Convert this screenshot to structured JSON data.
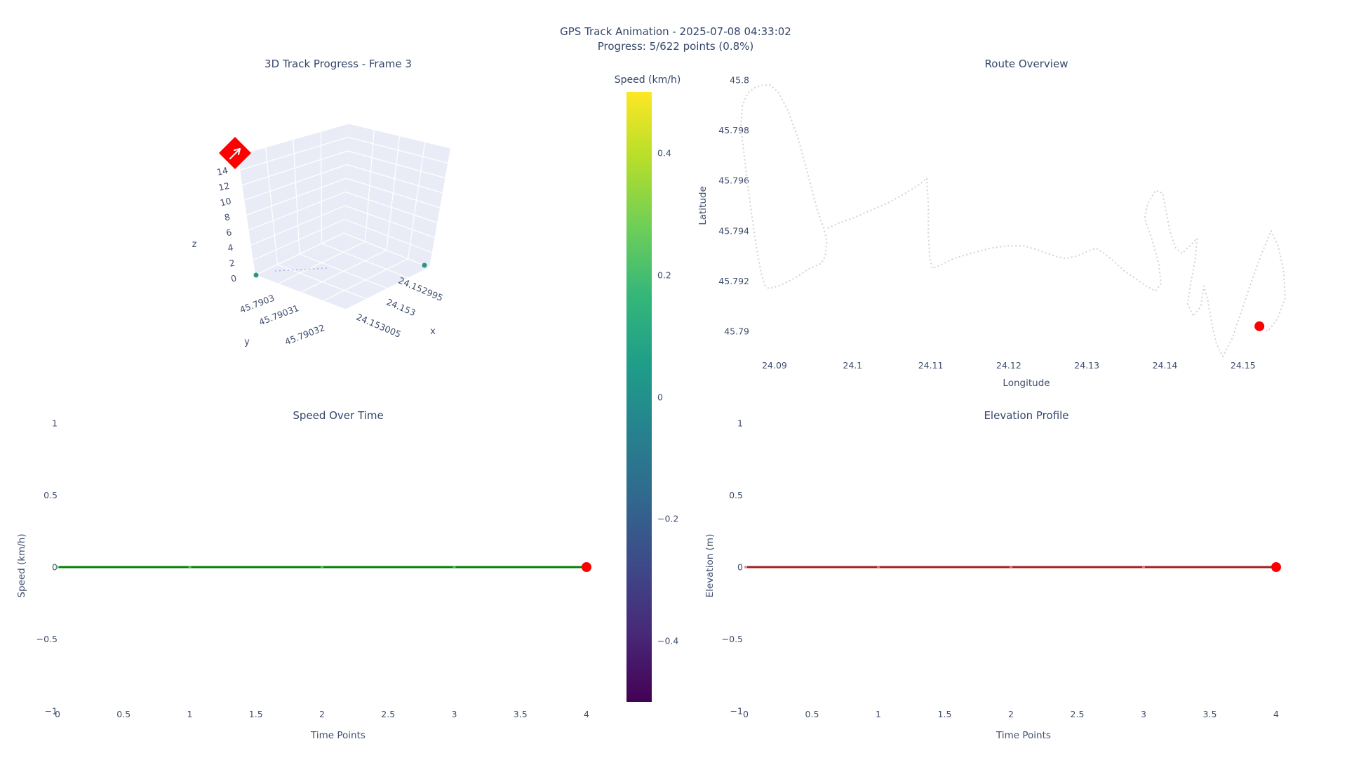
{
  "header": {
    "title_line1": "GPS Track Animation - 2025-07-08 04:33:02",
    "title_line2": "Progress: 5/622 points (0.8%)"
  },
  "style": {
    "text_color": "#3f4f6e",
    "title_color": "#35476a",
    "pane_color": "#e9ecf6",
    "grid_color": "#ffffff",
    "route_line_color": "#d3d3d3",
    "speed_line_color": "#008000",
    "speed_minor_marker_color": "#69b869",
    "elevation_line_color": "#a31d1d",
    "elevation_minor_marker_color": "#d9807f",
    "current_marker_color": "#ff0000",
    "track_point_color": "#2b9686",
    "trail_color": "#93a4e8",
    "viridis": [
      "#440154",
      "#482878",
      "#3e4989",
      "#31688e",
      "#26828e",
      "#1f9e89",
      "#35b779",
      "#6ece58",
      "#b5de2b",
      "#fde725"
    ]
  },
  "chart_data": [
    {
      "id": "track3d",
      "type": "scatter",
      "title": "3D Track Progress - Frame 3",
      "xlabel": "x",
      "ylabel": "y",
      "zlabel": "z",
      "x_tick_labels": [
        "24.152995",
        "24.153",
        "24.153005"
      ],
      "y_tick_labels": [
        "45.7903",
        "45.79031",
        "45.79032"
      ],
      "z_tick_labels": [
        "0",
        "2",
        "4",
        "6",
        "8",
        "10",
        "12",
        "14"
      ],
      "grid": true,
      "track_points": [
        {
          "x": 24.153005,
          "y": 45.7903,
          "z": 0
        },
        {
          "x": 24.152995,
          "y": 45.7903,
          "z": 0
        }
      ],
      "trail_note": "faint dotted trail of first points along floor",
      "current_point": {
        "x": 24.153,
        "y": 45.79032,
        "z": 15,
        "marker": "diamond",
        "color": "#ff0000"
      }
    },
    {
      "id": "route",
      "type": "line",
      "title": "Route Overview",
      "xlabel": "Longitude",
      "ylabel": "Latitude",
      "x_tick_labels": [
        "24.09",
        "24.1",
        "24.11",
        "24.12",
        "24.13",
        "24.14",
        "24.15"
      ],
      "y_tick_labels": [
        "45.8",
        "45.798",
        "45.796",
        "45.794",
        "45.792",
        "45.79"
      ],
      "xlim": [
        24.0845,
        24.1585
      ],
      "ylim": [
        45.7888,
        45.8004
      ],
      "grid": false,
      "line_style": "dotted",
      "segments": [
        [
          [
            24.0888,
            45.7918
          ],
          [
            24.0883,
            45.7923
          ],
          [
            24.0877,
            45.7933
          ],
          [
            24.0871,
            45.7946
          ],
          [
            24.0865,
            45.796
          ],
          [
            24.086,
            45.7973
          ],
          [
            24.0857,
            45.7982
          ],
          [
            24.0859,
            45.799
          ],
          [
            24.0866,
            45.7995
          ],
          [
            24.0875,
            45.7997
          ],
          [
            24.0886,
            45.7998
          ],
          [
            24.0895,
            45.7998
          ],
          [
            24.0905,
            45.7995
          ],
          [
            24.0917,
            45.7988
          ],
          [
            24.093,
            45.7977
          ],
          [
            24.0943,
            45.7962
          ],
          [
            24.0955,
            45.7948
          ],
          [
            24.0963,
            45.7941
          ],
          [
            24.0967,
            45.7936
          ],
          [
            24.0965,
            45.793
          ],
          [
            24.096,
            45.7927
          ],
          [
            24.0945,
            45.7925
          ],
          [
            24.0925,
            45.7921
          ],
          [
            24.0905,
            45.7918
          ],
          [
            24.0893,
            45.7917
          ],
          [
            24.0888,
            45.7918
          ]
        ],
        [
          [
            24.0968,
            45.7941
          ],
          [
            24.0982,
            45.7943
          ],
          [
            24.1,
            45.7945
          ],
          [
            24.1022,
            45.7948
          ],
          [
            24.1045,
            45.7951
          ],
          [
            24.1068,
            45.7955
          ],
          [
            24.1088,
            45.7959
          ],
          [
            24.1095,
            45.7961
          ],
          [
            24.1097,
            45.795
          ],
          [
            24.1097,
            45.7938
          ],
          [
            24.1099,
            45.7929
          ],
          [
            24.1102,
            45.7925
          ],
          [
            24.111,
            45.7926
          ],
          [
            24.113,
            45.7929
          ],
          [
            24.1152,
            45.7931
          ],
          [
            24.1175,
            45.7933
          ],
          [
            24.1198,
            45.7934
          ],
          [
            24.122,
            45.7934
          ],
          [
            24.124,
            45.7932
          ],
          [
            24.1258,
            45.793
          ],
          [
            24.1272,
            45.7929
          ],
          [
            24.1288,
            45.793
          ],
          [
            24.1302,
            45.7932
          ],
          [
            24.1312,
            45.7933
          ],
          [
            24.1322,
            45.7931
          ],
          [
            24.1334,
            45.7928
          ],
          [
            24.1348,
            45.7924
          ],
          [
            24.1362,
            45.7921
          ],
          [
            24.1376,
            45.7918
          ],
          [
            24.1388,
            45.7916
          ],
          [
            24.1395,
            45.7919
          ],
          [
            24.1392,
            45.7927
          ],
          [
            24.1383,
            45.7937
          ],
          [
            24.1374,
            45.7945
          ],
          [
            24.1378,
            45.7951
          ],
          [
            24.1388,
            45.7956
          ],
          [
            24.1397,
            45.7955
          ],
          [
            24.1402,
            45.7947
          ],
          [
            24.1407,
            45.7939
          ],
          [
            24.1414,
            45.7933
          ],
          [
            24.1422,
            45.7931
          ],
          [
            24.1432,
            45.7934
          ],
          [
            24.1441,
            45.7937
          ],
          [
            24.1439,
            45.7929
          ],
          [
            24.1433,
            45.7919
          ],
          [
            24.1429,
            45.7911
          ],
          [
            24.1436,
            45.7906
          ],
          [
            24.1446,
            45.791
          ],
          [
            24.145,
            45.7918
          ],
          [
            24.1455,
            45.7912
          ],
          [
            24.146,
            45.7903
          ],
          [
            24.1466,
            45.7895
          ],
          [
            24.1474,
            45.789
          ],
          [
            24.1486,
            45.7897
          ],
          [
            24.1498,
            45.7908
          ],
          [
            24.1511,
            45.792
          ],
          [
            24.1524,
            45.7931
          ],
          [
            24.1536,
            45.794
          ],
          [
            24.1545,
            45.7934
          ],
          [
            24.1552,
            45.7924
          ],
          [
            24.1554,
            45.7913
          ],
          [
            24.1544,
            45.7905
          ],
          [
            24.1532,
            45.79
          ],
          [
            24.1521,
            45.7902
          ]
        ]
      ],
      "current_position": [
        24.1521,
        45.7902
      ]
    },
    {
      "id": "speed",
      "type": "line",
      "title": "Speed Over Time",
      "xlabel": "Time Points",
      "ylabel": "Speed (km/h)",
      "x": [
        0,
        1,
        2,
        3,
        4
      ],
      "values": [
        0,
        0,
        0,
        0,
        0
      ],
      "x_tick_labels": [
        "0",
        "0.5",
        "1",
        "1.5",
        "2",
        "2.5",
        "3",
        "3.5",
        "4"
      ],
      "x_ticks": [
        0,
        0.5,
        1,
        1.5,
        2,
        2.5,
        3,
        3.5,
        4
      ],
      "y_tick_labels": [
        "1",
        "0.5",
        "0",
        "−0.5",
        "−1"
      ],
      "y_ticks": [
        1,
        0.5,
        0,
        -0.5,
        -1
      ],
      "xlim": [
        0,
        4
      ],
      "ylim": [
        -1,
        1
      ],
      "grid": false,
      "current_index": 4
    },
    {
      "id": "elevation",
      "type": "line",
      "title": "Elevation Profile",
      "xlabel": "Time Points",
      "ylabel": "Elevation (m)",
      "x": [
        0,
        1,
        2,
        3,
        4
      ],
      "values": [
        0,
        0,
        0,
        0,
        0
      ],
      "x_tick_labels": [
        "0",
        "0.5",
        "1",
        "1.5",
        "2",
        "2.5",
        "3",
        "3.5",
        "4"
      ],
      "x_ticks": [
        0,
        0.5,
        1,
        1.5,
        2,
        2.5,
        3,
        3.5,
        4
      ],
      "y_tick_labels": [
        "1",
        "0.5",
        "0",
        "−0.5",
        "−1"
      ],
      "y_ticks": [
        1,
        0.5,
        0,
        -0.5,
        -1
      ],
      "xlim": [
        0,
        4
      ],
      "ylim": [
        -1,
        1
      ],
      "grid": false,
      "current_index": 4
    },
    {
      "id": "colorbar",
      "type": "colorbar",
      "label": "Speed (km/h)",
      "colormap": "viridis",
      "range": [
        -0.5,
        0.5
      ],
      "tick_labels": [
        "0.4",
        "0.2",
        "0",
        "−0.2",
        "−0.4"
      ],
      "ticks": [
        0.4,
        0.2,
        0,
        -0.2,
        -0.4
      ]
    }
  ]
}
